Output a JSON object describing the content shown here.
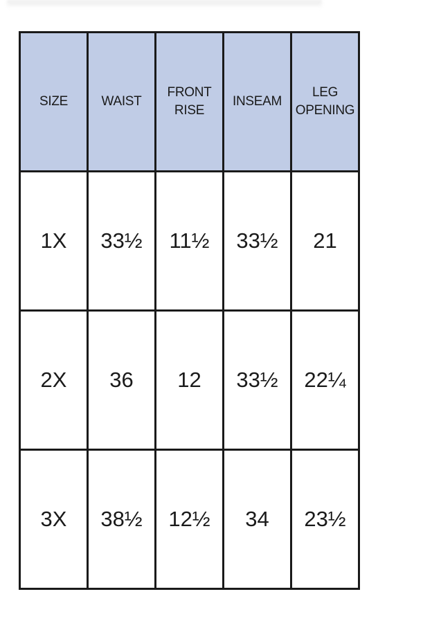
{
  "table": {
    "header_color": "#c0cce6",
    "headers": [
      "SIZE",
      "WAIST",
      "FRONT\nRISE",
      "INSEAM",
      "LEG\nOPENING"
    ],
    "rows": [
      [
        "1X",
        "33½",
        "11½",
        "33½",
        "21"
      ],
      [
        "2X",
        "36",
        "12",
        "33½",
        "22¼"
      ],
      [
        "3X",
        "38½",
        "12½",
        "34",
        "23½"
      ]
    ]
  }
}
